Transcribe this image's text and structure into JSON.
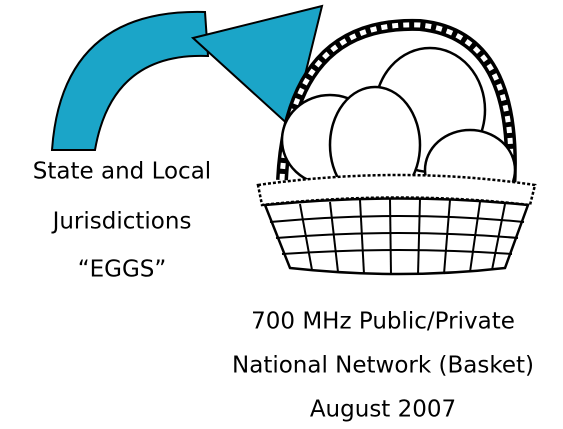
{
  "eggs_label": {
    "lines": [
      "State and Local",
      "Jurisdictions",
      "“EGGS”"
    ]
  },
  "basket_label": {
    "lines": [
      "700 MHz Public/Private",
      "National Network (Basket)",
      "August 2007"
    ]
  }
}
